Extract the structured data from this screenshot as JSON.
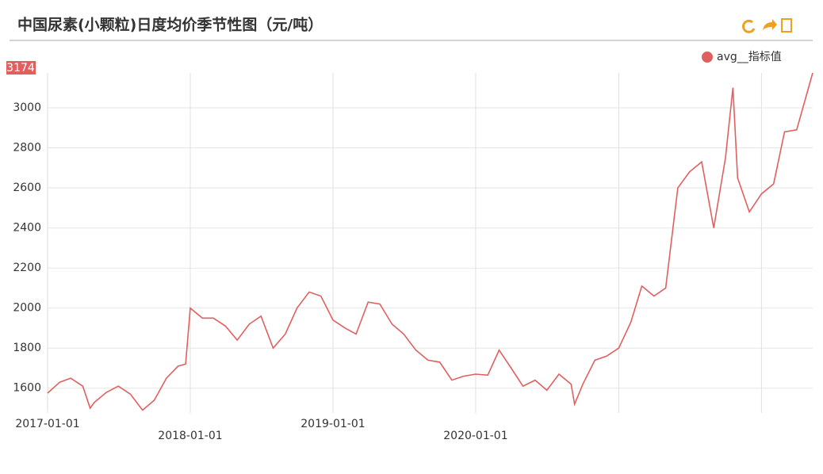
{
  "chart_data": {
    "type": "line",
    "title": "中国尿素(小颗粒)日度均价季节性图（元/吨）",
    "x": [
      "2017-01-01",
      "2017-02-01",
      "2017-03-01",
      "2017-04-01",
      "2017-04-20",
      "2017-05-01",
      "2017-06-01",
      "2017-07-01",
      "2017-08-01",
      "2017-09-01",
      "2017-10-01",
      "2017-11-01",
      "2017-12-01",
      "2017-12-20",
      "2018-01-01",
      "2018-02-01",
      "2018-03-01",
      "2018-04-01",
      "2018-05-01",
      "2018-06-01",
      "2018-07-01",
      "2018-08-01",
      "2018-09-01",
      "2018-10-01",
      "2018-11-01",
      "2018-12-01",
      "2019-01-01",
      "2019-02-01",
      "2019-03-01",
      "2019-04-01",
      "2019-05-01",
      "2019-06-01",
      "2019-07-01",
      "2019-08-01",
      "2019-09-01",
      "2019-10-01",
      "2019-11-01",
      "2019-12-01",
      "2020-01-01",
      "2020-02-01",
      "2020-03-01",
      "2020-04-01",
      "2020-05-01",
      "2020-06-01",
      "2020-07-01",
      "2020-08-01",
      "2020-09-01",
      "2020-09-10",
      "2020-10-01",
      "2020-11-01",
      "2020-12-01",
      "2021-01-01",
      "2021-02-01",
      "2021-03-01",
      "2021-04-01",
      "2021-05-01",
      "2021-06-01",
      "2021-07-01",
      "2021-08-01",
      "2021-09-01",
      "2021-10-01",
      "2021-10-20",
      "2021-11-01",
      "2021-12-01",
      "2022-01-01",
      "2022-02-01",
      "2022-03-01",
      "2022-04-01",
      "2022-05-12"
    ],
    "series": [
      {
        "name": "avg__指标值",
        "color": "#e06060",
        "values": [
          1575,
          1630,
          1650,
          1610,
          1500,
          1530,
          1580,
          1610,
          1570,
          1490,
          1540,
          1650,
          1710,
          1720,
          2000,
          1950,
          1950,
          1910,
          1840,
          1920,
          1960,
          1800,
          1870,
          2000,
          2080,
          2060,
          1940,
          1900,
          1870,
          2030,
          2020,
          1920,
          1870,
          1790,
          1740,
          1730,
          1640,
          1660,
          1670,
          1665,
          1790,
          1700,
          1610,
          1640,
          1590,
          1670,
          1620,
          1520,
          1620,
          1740,
          1760,
          1800,
          1930,
          2110,
          2060,
          2100,
          2600,
          2680,
          2730,
          2400,
          2750,
          3100,
          2650,
          2480,
          2570,
          2620,
          2880,
          2890,
          3174
        ]
      }
    ],
    "xlim": [
      "2017-01-01",
      "2022-05-12"
    ],
    "xticks": [
      "2017-01-01",
      "2018-01-01",
      "2019-01-01",
      "2020-01-01",
      {
        "value": "2021-01-01",
        "label": null
      },
      {
        "value": "2022-01-01",
        "label": null
      }
    ],
    "ylim": [
      1500,
      3174
    ],
    "yticks": [
      1600,
      1800,
      2000,
      2200,
      2400,
      2600,
      2800,
      3000
    ],
    "grid": true
  }
}
